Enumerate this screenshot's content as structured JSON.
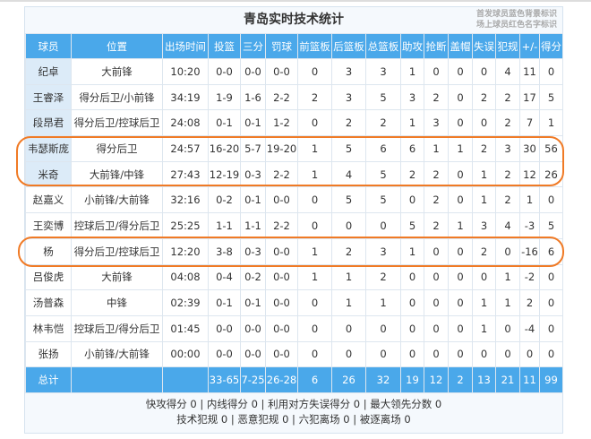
{
  "title": "青岛实时技术统计",
  "legend": [
    "首发球员蓝色背景标识",
    "场上球员红色名字标识"
  ],
  "columns": [
    "球员",
    "位置",
    "出场时间",
    "投篮",
    "三分",
    "罚球",
    "前篮板",
    "后篮板",
    "总篮板",
    "助攻",
    "抢断",
    "盖帽",
    "失误",
    "犯规",
    "+/-",
    "得分"
  ],
  "rows": [
    {
      "starter": true,
      "cells": [
        "纪卓",
        "大前锋",
        "10:20",
        "0-0",
        "0-0",
        "0-0",
        "0",
        "3",
        "3",
        "1",
        "0",
        "0",
        "0",
        "4",
        "11",
        "0"
      ]
    },
    {
      "starter": true,
      "cells": [
        "王睿泽",
        "得分后卫/小前锋",
        "34:19",
        "1-9",
        "1-6",
        "2-2",
        "2",
        "3",
        "5",
        "3",
        "2",
        "0",
        "2",
        "2",
        "17",
        "5"
      ]
    },
    {
      "starter": true,
      "cells": [
        "段昂君",
        "得分后卫/控球后卫",
        "24:08",
        "0-1",
        "0-1",
        "1-2",
        "0",
        "2",
        "2",
        "1",
        "3",
        "0",
        "0",
        "2",
        "7",
        "1"
      ]
    },
    {
      "starter": true,
      "cells": [
        "韦瑟斯庞",
        "得分后卫",
        "24:57",
        "16-20",
        "5-7",
        "19-20",
        "1",
        "5",
        "6",
        "6",
        "1",
        "1",
        "2",
        "3",
        "30",
        "56"
      ]
    },
    {
      "starter": true,
      "cells": [
        "米奇",
        "大前锋/中锋",
        "27:43",
        "12-19",
        "0-3",
        "2-2",
        "1",
        "4",
        "5",
        "2",
        "2",
        "0",
        "1",
        "2",
        "12",
        "26"
      ]
    },
    {
      "starter": false,
      "cells": [
        "赵嘉义",
        "小前锋/大前锋",
        "32:16",
        "0-2",
        "0-1",
        "0-0",
        "0",
        "5",
        "5",
        "0",
        "2",
        "0",
        "1",
        "2",
        "1",
        "0"
      ]
    },
    {
      "starter": false,
      "cells": [
        "王奕博",
        "控球后卫/得分后卫",
        "25:25",
        "1-1",
        "1-1",
        "2-2",
        "0",
        "0",
        "0",
        "5",
        "2",
        "1",
        "3",
        "4",
        "-3",
        "5"
      ]
    },
    {
      "starter": false,
      "cells": [
        "杨",
        "得分后卫/控球后卫",
        "12:20",
        "3-8",
        "0-3",
        "0-0",
        "1",
        "2",
        "3",
        "1",
        "0",
        "0",
        "2",
        "0",
        "-16",
        "6"
      ]
    },
    {
      "starter": false,
      "cells": [
        "吕俊虎",
        "大前锋",
        "04:08",
        "0-4",
        "0-2",
        "0-0",
        "1",
        "1",
        "2",
        "0",
        "0",
        "0",
        "0",
        "1",
        "-2",
        "0"
      ]
    },
    {
      "starter": false,
      "cells": [
        "汤普森",
        "中锋",
        "02:39",
        "0-1",
        "0-1",
        "0-0",
        "0",
        "1",
        "1",
        "0",
        "0",
        "0",
        "1",
        "1",
        "2",
        "0"
      ]
    },
    {
      "starter": false,
      "cells": [
        "林韦恺",
        "控球后卫/得分后卫",
        "01:45",
        "0-0",
        "0-0",
        "0-0",
        "0",
        "0",
        "0",
        "0",
        "0",
        "0",
        "1",
        "0",
        "-4",
        "0"
      ]
    },
    {
      "starter": false,
      "cells": [
        "张扬",
        "小前锋/大前锋",
        "00:00",
        "0-0",
        "0-0",
        "0-0",
        "0",
        "0",
        "0",
        "0",
        "0",
        "0",
        "0",
        "0",
        "0",
        "0"
      ]
    }
  ],
  "total": [
    "总计",
    "",
    "",
    "33-65",
    "7-25",
    "26-28",
    "6",
    "26",
    "32",
    "19",
    "12",
    "2",
    "13",
    "21",
    "11",
    "99"
  ],
  "footer": [
    "快攻得分 0 | 内线得分 0 | 利用对方失误得分 0 | 最大领先分数 0",
    "技术犯规 0 | 恶意犯规 0 | 六犯离场 0 | 被逐离场 0"
  ],
  "colors": {
    "header": "#4aa8ea",
    "starter_bg": "#dcebf8",
    "highlight": "#f07a25"
  }
}
